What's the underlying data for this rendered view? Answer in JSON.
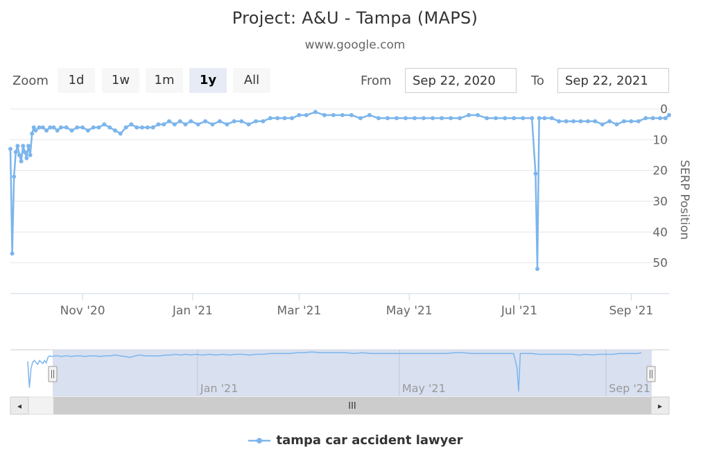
{
  "title": "Project: A&U - Tampa (MAPS)",
  "subtitle": "www.google.com",
  "range_selector": {
    "zoom_label": "Zoom",
    "buttons": [
      "1d",
      "1w",
      "1m",
      "1y",
      "All"
    ],
    "active": "1y",
    "from_label": "From",
    "from_value": "Sep 22, 2020",
    "to_label": "To",
    "to_value": "Sep 22, 2021"
  },
  "navigator": {
    "ticks": [
      "Jan '21",
      "May '21",
      "Sep '21"
    ],
    "scrollbar_grip": "III",
    "left_arrow": "◂",
    "right_arrow": "▸"
  },
  "colors": {
    "series": "#7cb5ec",
    "navigator_mask": "#d5ddee",
    "grid": "#e6e6e6"
  },
  "chart_data": {
    "type": "line",
    "title": "Project: A&U - Tampa (MAPS)",
    "subtitle": "www.google.com",
    "ylabel": "SERP Position",
    "y_reversed": true,
    "ylim": [
      0,
      60
    ],
    "yticks": [
      0,
      10,
      20,
      30,
      40,
      50
    ],
    "xlim": [
      "2020-09-22",
      "2021-09-22"
    ],
    "xticks": [
      "Nov '20",
      "Jan '21",
      "Mar '21",
      "May '21",
      "Jul '21",
      "Sep '21"
    ],
    "xtick_dates": [
      "2020-11-01",
      "2021-01-01",
      "2021-03-01",
      "2021-05-01",
      "2021-07-01",
      "2021-09-01"
    ],
    "legend_position": "bottom",
    "series": [
      {
        "name": "tampa car accident lawyer",
        "points": [
          [
            "2020-09-22",
            13
          ],
          [
            "2020-09-23",
            47
          ],
          [
            "2020-09-24",
            22
          ],
          [
            "2020-09-25",
            14
          ],
          [
            "2020-09-26",
            12
          ],
          [
            "2020-09-27",
            15
          ],
          [
            "2020-09-28",
            17
          ],
          [
            "2020-09-29",
            12
          ],
          [
            "2020-09-30",
            14
          ],
          [
            "2020-10-01",
            16
          ],
          [
            "2020-10-02",
            12
          ],
          [
            "2020-10-03",
            15
          ],
          [
            "2020-10-04",
            8
          ],
          [
            "2020-10-05",
            6
          ],
          [
            "2020-10-06",
            7
          ],
          [
            "2020-10-08",
            6
          ],
          [
            "2020-10-10",
            6
          ],
          [
            "2020-10-12",
            7
          ],
          [
            "2020-10-14",
            6
          ],
          [
            "2020-10-16",
            6
          ],
          [
            "2020-10-18",
            7
          ],
          [
            "2020-10-20",
            6
          ],
          [
            "2020-10-23",
            6
          ],
          [
            "2020-10-26",
            7
          ],
          [
            "2020-10-29",
            6
          ],
          [
            "2020-11-01",
            6
          ],
          [
            "2020-11-04",
            7
          ],
          [
            "2020-11-07",
            6
          ],
          [
            "2020-11-10",
            6
          ],
          [
            "2020-11-13",
            5
          ],
          [
            "2020-11-16",
            6
          ],
          [
            "2020-11-19",
            7
          ],
          [
            "2020-11-22",
            8
          ],
          [
            "2020-11-25",
            6
          ],
          [
            "2020-11-28",
            5
          ],
          [
            "2020-12-01",
            6
          ],
          [
            "2020-12-04",
            6
          ],
          [
            "2020-12-07",
            6
          ],
          [
            "2020-12-10",
            6
          ],
          [
            "2020-12-13",
            5
          ],
          [
            "2020-12-16",
            5
          ],
          [
            "2020-12-19",
            4
          ],
          [
            "2020-12-22",
            5
          ],
          [
            "2020-12-25",
            4
          ],
          [
            "2020-12-28",
            5
          ],
          [
            "2020-12-31",
            4
          ],
          [
            "2021-01-04",
            5
          ],
          [
            "2021-01-08",
            4
          ],
          [
            "2021-01-12",
            5
          ],
          [
            "2021-01-16",
            4
          ],
          [
            "2021-01-20",
            5
          ],
          [
            "2021-01-24",
            4
          ],
          [
            "2021-01-28",
            4
          ],
          [
            "2021-02-01",
            5
          ],
          [
            "2021-02-05",
            4
          ],
          [
            "2021-02-09",
            4
          ],
          [
            "2021-02-13",
            3
          ],
          [
            "2021-02-17",
            3
          ],
          [
            "2021-02-21",
            3
          ],
          [
            "2021-02-25",
            3
          ],
          [
            "2021-03-01",
            2
          ],
          [
            "2021-03-05",
            2
          ],
          [
            "2021-03-10",
            1
          ],
          [
            "2021-03-15",
            2
          ],
          [
            "2021-03-20",
            2
          ],
          [
            "2021-03-25",
            2
          ],
          [
            "2021-03-30",
            2
          ],
          [
            "2021-04-04",
            3
          ],
          [
            "2021-04-09",
            2
          ],
          [
            "2021-04-14",
            3
          ],
          [
            "2021-04-19",
            3
          ],
          [
            "2021-04-24",
            3
          ],
          [
            "2021-04-29",
            3
          ],
          [
            "2021-05-04",
            3
          ],
          [
            "2021-05-09",
            3
          ],
          [
            "2021-05-14",
            3
          ],
          [
            "2021-05-19",
            3
          ],
          [
            "2021-05-24",
            3
          ],
          [
            "2021-05-29",
            3
          ],
          [
            "2021-06-03",
            2
          ],
          [
            "2021-06-08",
            2
          ],
          [
            "2021-06-13",
            3
          ],
          [
            "2021-06-18",
            3
          ],
          [
            "2021-06-23",
            3
          ],
          [
            "2021-06-28",
            3
          ],
          [
            "2021-07-03",
            3
          ],
          [
            "2021-07-08",
            3
          ],
          [
            "2021-07-10",
            21
          ],
          [
            "2021-07-11",
            52
          ],
          [
            "2021-07-12",
            3
          ],
          [
            "2021-07-15",
            3
          ],
          [
            "2021-07-19",
            3
          ],
          [
            "2021-07-23",
            4
          ],
          [
            "2021-07-27",
            4
          ],
          [
            "2021-07-31",
            4
          ],
          [
            "2021-08-04",
            4
          ],
          [
            "2021-08-08",
            4
          ],
          [
            "2021-08-12",
            4
          ],
          [
            "2021-08-16",
            5
          ],
          [
            "2021-08-20",
            4
          ],
          [
            "2021-08-24",
            5
          ],
          [
            "2021-08-28",
            4
          ],
          [
            "2021-09-01",
            4
          ],
          [
            "2021-09-05",
            4
          ],
          [
            "2021-09-09",
            3
          ],
          [
            "2021-09-13",
            3
          ],
          [
            "2021-09-17",
            3
          ],
          [
            "2021-09-20",
            3
          ],
          [
            "2021-09-22",
            2
          ]
        ]
      }
    ]
  }
}
